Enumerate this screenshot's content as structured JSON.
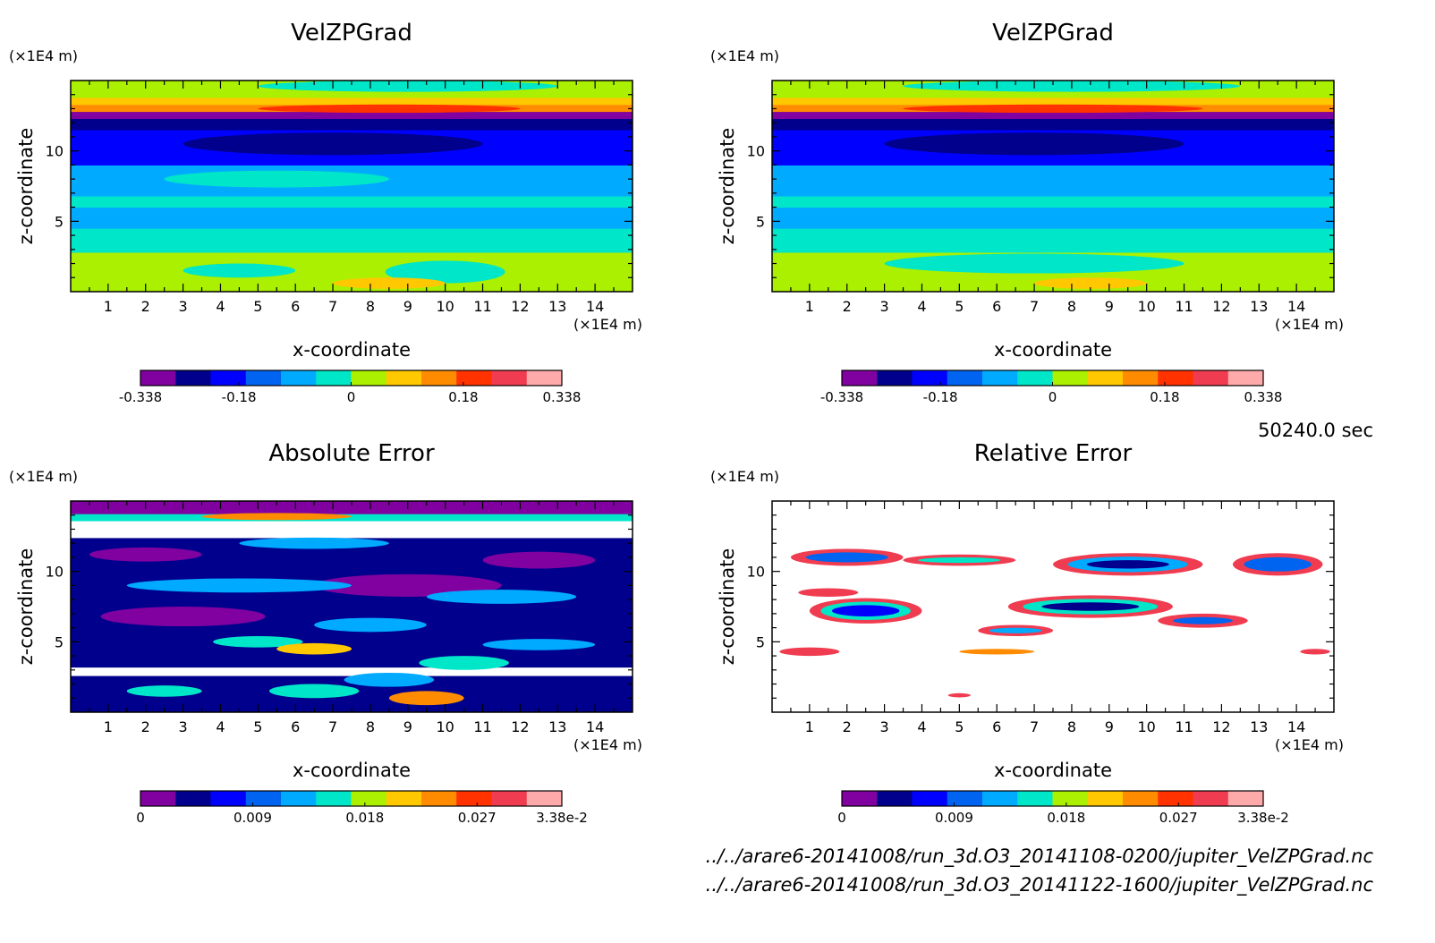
{
  "colormap": [
    "#8000a0",
    "#00008c",
    "#0000ff",
    "#0064f0",
    "#00aaff",
    "#00e6c8",
    "#aaf000",
    "#ffc800",
    "#ff8c00",
    "#ff3200",
    "#f03c50",
    "#ffaaaa"
  ],
  "chart_data": [
    {
      "type": "heatmap",
      "title": "VelZPGrad",
      "xlabel": "x-coordinate",
      "ylabel": "z-coordinate",
      "x_unit": "(×1E4 m)",
      "y_unit": "(×1E4 m)",
      "xlim": [
        0,
        15
      ],
      "ylim": [
        0,
        15
      ],
      "xticks": [
        "1",
        "2",
        "3",
        "4",
        "5",
        "6",
        "7",
        "8",
        "9",
        "10",
        "11",
        "12",
        "13",
        "14"
      ],
      "yticks": [
        "5",
        "10"
      ],
      "colorbar": {
        "range": [
          -0.338,
          0.338
        ],
        "labels": [
          "-0.338",
          "-0.18",
          "0",
          "0.18",
          "0.338"
        ]
      },
      "bands": [
        {
          "z": [
            0.0,
            2.8
          ],
          "level": 6
        },
        {
          "z": [
            2.8,
            4.5
          ],
          "level": 5
        },
        {
          "z": [
            4.5,
            6.0
          ],
          "level": 4
        },
        {
          "z": [
            6.0,
            6.8
          ],
          "level": 5
        },
        {
          "z": [
            6.8,
            9.0
          ],
          "level": 4
        },
        {
          "z": [
            9.0,
            11.5
          ],
          "level": 2
        },
        {
          "z": [
            11.5,
            12.3
          ],
          "level": 1
        },
        {
          "z": [
            12.3,
            12.8
          ],
          "level": 0
        },
        {
          "z": [
            12.8,
            13.3
          ],
          "level": 8
        },
        {
          "z": [
            13.3,
            13.8
          ],
          "level": 7
        },
        {
          "z": [
            13.8,
            15.0
          ],
          "level": 6
        }
      ],
      "blobs": [
        {
          "x": 10.0,
          "z": 1.4,
          "rx": 1.6,
          "rz": 0.8,
          "level": 5
        },
        {
          "x": 4.5,
          "z": 1.5,
          "rx": 1.5,
          "rz": 0.5,
          "level": 5
        },
        {
          "x": 8.5,
          "z": 0.6,
          "rx": 1.5,
          "rz": 0.4,
          "level": 7
        },
        {
          "x": 8.5,
          "z": 13.0,
          "rx": 3.5,
          "rz": 0.3,
          "level": 9
        },
        {
          "x": 9.0,
          "z": 14.6,
          "rx": 4.0,
          "rz": 0.4,
          "level": 5
        },
        {
          "x": 5.5,
          "z": 8.0,
          "rx": 3.0,
          "rz": 0.6,
          "level": 5
        },
        {
          "x": 7.0,
          "z": 10.5,
          "rx": 4.0,
          "rz": 0.8,
          "level": 1
        }
      ]
    },
    {
      "type": "heatmap",
      "title": "VelZPGrad",
      "xlabel": "x-coordinate",
      "ylabel": "z-coordinate",
      "x_unit": "(×1E4 m)",
      "y_unit": "(×1E4 m)",
      "xlim": [
        0,
        15
      ],
      "ylim": [
        0,
        15
      ],
      "xticks": [
        "1",
        "2",
        "3",
        "4",
        "5",
        "6",
        "7",
        "8",
        "9",
        "10",
        "11",
        "12",
        "13",
        "14"
      ],
      "yticks": [
        "5",
        "10"
      ],
      "colorbar": {
        "range": [
          -0.338,
          0.338
        ],
        "labels": [
          "-0.338",
          "-0.18",
          "0",
          "0.18",
          "0.338"
        ]
      },
      "bands": [
        {
          "z": [
            0.0,
            2.8
          ],
          "level": 6
        },
        {
          "z": [
            2.8,
            4.5
          ],
          "level": 5
        },
        {
          "z": [
            4.5,
            6.0
          ],
          "level": 4
        },
        {
          "z": [
            6.0,
            6.8
          ],
          "level": 5
        },
        {
          "z": [
            6.8,
            9.0
          ],
          "level": 4
        },
        {
          "z": [
            9.0,
            11.5
          ],
          "level": 2
        },
        {
          "z": [
            11.5,
            12.3
          ],
          "level": 1
        },
        {
          "z": [
            12.3,
            12.8
          ],
          "level": 0
        },
        {
          "z": [
            12.8,
            13.3
          ],
          "level": 8
        },
        {
          "z": [
            13.3,
            13.8
          ],
          "level": 7
        },
        {
          "z": [
            13.8,
            15.0
          ],
          "level": 6
        }
      ],
      "blobs": [
        {
          "x": 7.0,
          "z": 2.0,
          "rx": 4.0,
          "rz": 0.7,
          "level": 5
        },
        {
          "x": 8.5,
          "z": 0.6,
          "rx": 1.5,
          "rz": 0.4,
          "level": 7
        },
        {
          "x": 7.5,
          "z": 13.0,
          "rx": 4.0,
          "rz": 0.3,
          "level": 9
        },
        {
          "x": 8.0,
          "z": 14.6,
          "rx": 4.5,
          "rz": 0.4,
          "level": 5
        },
        {
          "x": 7.0,
          "z": 10.5,
          "rx": 4.0,
          "rz": 0.8,
          "level": 1
        },
        {
          "x": 8.5,
          "z": 4.0,
          "rx": 0.8,
          "rz": 0.3,
          "level": 5
        }
      ]
    },
    {
      "type": "heatmap",
      "title": "Absolute Error",
      "xlabel": "x-coordinate",
      "ylabel": "z-coordinate",
      "x_unit": "(×1E4 m)",
      "y_unit": "(×1E4 m)",
      "xlim": [
        0,
        15
      ],
      "ylim": [
        0,
        15
      ],
      "xticks": [
        "1",
        "2",
        "3",
        "4",
        "5",
        "6",
        "7",
        "8",
        "9",
        "10",
        "11",
        "12",
        "13",
        "14"
      ],
      "yticks": [
        "5",
        "10"
      ],
      "colorbar": {
        "range": [
          0,
          0.0338
        ],
        "labels": [
          "0",
          "0.009",
          "0.018",
          "0.027",
          "3.38e-2"
        ]
      },
      "bands": [
        {
          "z": [
            0.0,
            2.6
          ],
          "level": 1
        },
        {
          "z": [
            2.6,
            3.2
          ],
          "level": -1
        },
        {
          "z": [
            3.2,
            12.4
          ],
          "level": 1
        },
        {
          "z": [
            12.4,
            13.6
          ],
          "level": -1
        },
        {
          "z": [
            13.6,
            14.1
          ],
          "level": 5
        },
        {
          "z": [
            14.1,
            15.0
          ],
          "level": 0
        }
      ],
      "blobs": [
        {
          "x": 3.0,
          "z": 6.8,
          "rx": 2.2,
          "rz": 0.7,
          "level": 0
        },
        {
          "x": 9.0,
          "z": 9.0,
          "rx": 2.5,
          "rz": 0.8,
          "level": 0
        },
        {
          "x": 12.5,
          "z": 10.8,
          "rx": 1.5,
          "rz": 0.6,
          "level": 0
        },
        {
          "x": 2.0,
          "z": 11.2,
          "rx": 1.5,
          "rz": 0.5,
          "level": 0
        },
        {
          "x": 5.0,
          "z": 5.0,
          "rx": 1.2,
          "rz": 0.4,
          "level": 5
        },
        {
          "x": 6.5,
          "z": 4.5,
          "rx": 1.0,
          "rz": 0.4,
          "level": 7
        },
        {
          "x": 10.5,
          "z": 3.5,
          "rx": 1.2,
          "rz": 0.5,
          "level": 5
        },
        {
          "x": 12.5,
          "z": 4.8,
          "rx": 1.5,
          "rz": 0.4,
          "level": 4
        },
        {
          "x": 8.0,
          "z": 6.2,
          "rx": 1.5,
          "rz": 0.5,
          "level": 4
        },
        {
          "x": 4.5,
          "z": 9.0,
          "rx": 3.0,
          "rz": 0.5,
          "level": 4
        },
        {
          "x": 11.5,
          "z": 8.2,
          "rx": 2.0,
          "rz": 0.5,
          "level": 4
        },
        {
          "x": 6.5,
          "z": 12.0,
          "rx": 2.0,
          "rz": 0.4,
          "level": 4
        },
        {
          "x": 2.5,
          "z": 1.5,
          "rx": 1.0,
          "rz": 0.4,
          "level": 5
        },
        {
          "x": 6.5,
          "z": 1.5,
          "rx": 1.2,
          "rz": 0.5,
          "level": 5
        },
        {
          "x": 9.5,
          "z": 1.0,
          "rx": 1.0,
          "rz": 0.5,
          "level": 8
        },
        {
          "x": 8.5,
          "z": 2.3,
          "rx": 1.2,
          "rz": 0.5,
          "level": 4
        },
        {
          "x": 5.5,
          "z": 13.9,
          "rx": 2.0,
          "rz": 0.25,
          "level": 8
        }
      ]
    },
    {
      "type": "heatmap",
      "title": "Relative Error",
      "xlabel": "x-coordinate",
      "ylabel": "z-coordinate",
      "x_unit": "(×1E4 m)",
      "y_unit": "(×1E4 m)",
      "xlim": [
        0,
        15
      ],
      "ylim": [
        0,
        15
      ],
      "xticks": [
        "1",
        "2",
        "3",
        "4",
        "5",
        "6",
        "7",
        "8",
        "9",
        "10",
        "11",
        "12",
        "13",
        "14"
      ],
      "yticks": [
        "5",
        "10"
      ],
      "colorbar": {
        "range": [
          0,
          0.0338
        ],
        "labels": [
          "0",
          "0.009",
          "0.018",
          "0.027",
          "3.38e-2"
        ]
      },
      "bands": [
        {
          "z": [
            0.0,
            15.0
          ],
          "level": -1
        }
      ],
      "blobs": [
        {
          "x": 2.5,
          "z": 7.2,
          "rx": 1.5,
          "rz": 0.9,
          "level": 10
        },
        {
          "x": 2.5,
          "z": 7.2,
          "rx": 1.2,
          "rz": 0.65,
          "level": 5
        },
        {
          "x": 2.5,
          "z": 7.2,
          "rx": 0.9,
          "rz": 0.4,
          "level": 2
        },
        {
          "x": 8.5,
          "z": 7.5,
          "rx": 2.2,
          "rz": 0.8,
          "level": 10
        },
        {
          "x": 8.5,
          "z": 7.5,
          "rx": 1.8,
          "rz": 0.55,
          "level": 5
        },
        {
          "x": 8.5,
          "z": 7.5,
          "rx": 1.3,
          "rz": 0.3,
          "level": 1
        },
        {
          "x": 9.5,
          "z": 10.5,
          "rx": 2.0,
          "rz": 0.8,
          "level": 10
        },
        {
          "x": 9.5,
          "z": 10.5,
          "rx": 1.6,
          "rz": 0.55,
          "level": 4
        },
        {
          "x": 9.5,
          "z": 10.5,
          "rx": 1.1,
          "rz": 0.3,
          "level": 1
        },
        {
          "x": 13.5,
          "z": 10.5,
          "rx": 1.2,
          "rz": 0.8,
          "level": 10
        },
        {
          "x": 13.5,
          "z": 10.5,
          "rx": 0.9,
          "rz": 0.5,
          "level": 3
        },
        {
          "x": 2.0,
          "z": 11.0,
          "rx": 1.5,
          "rz": 0.6,
          "level": 10
        },
        {
          "x": 2.0,
          "z": 11.0,
          "rx": 1.1,
          "rz": 0.35,
          "level": 3
        },
        {
          "x": 5.0,
          "z": 10.8,
          "rx": 1.5,
          "rz": 0.4,
          "level": 10
        },
        {
          "x": 5.0,
          "z": 10.8,
          "rx": 1.1,
          "rz": 0.2,
          "level": 5
        },
        {
          "x": 11.5,
          "z": 6.5,
          "rx": 1.2,
          "rz": 0.5,
          "level": 10
        },
        {
          "x": 11.5,
          "z": 6.5,
          "rx": 0.8,
          "rz": 0.25,
          "level": 3
        },
        {
          "x": 6.5,
          "z": 5.8,
          "rx": 1.0,
          "rz": 0.4,
          "level": 10
        },
        {
          "x": 6.5,
          "z": 5.8,
          "rx": 0.7,
          "rz": 0.2,
          "level": 4
        },
        {
          "x": 1.0,
          "z": 4.3,
          "rx": 0.8,
          "rz": 0.3,
          "level": 10
        },
        {
          "x": 6.0,
          "z": 4.3,
          "rx": 1.0,
          "rz": 0.2,
          "level": 8
        },
        {
          "x": 1.5,
          "z": 8.5,
          "rx": 0.8,
          "rz": 0.3,
          "level": 10
        },
        {
          "x": 5.0,
          "z": 1.2,
          "rx": 0.3,
          "rz": 0.15,
          "level": 10
        },
        {
          "x": 14.5,
          "z": 4.3,
          "rx": 0.4,
          "rz": 0.2,
          "level": 10
        }
      ]
    }
  ],
  "footer": {
    "time": "50240.0 sec",
    "file1": "../../arare6-20141008/run_3d.O3_20141108-0200/jupiter_VelZPGrad.nc",
    "file2": "../../arare6-20141008/run_3d.O3_20141122-1600/jupiter_VelZPGrad.nc"
  }
}
